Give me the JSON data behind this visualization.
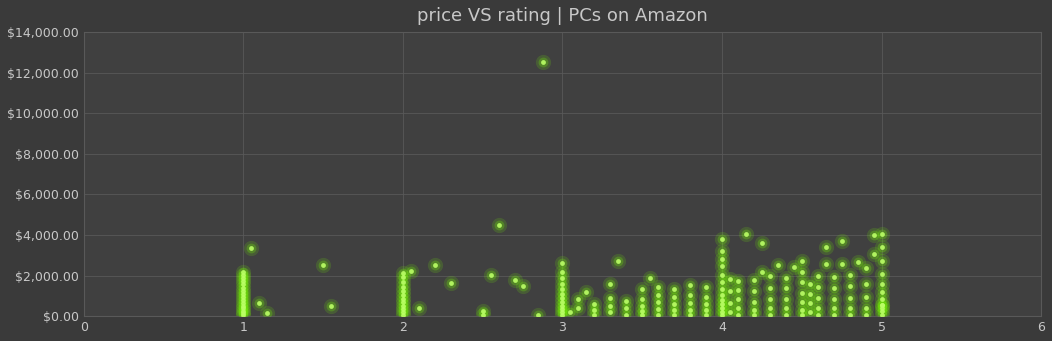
{
  "title": "price VS rating | PCs on Amazon",
  "bg_color": "#3a3a3a",
  "plot_bg_color": "#404040",
  "text_color": "#c8c8c8",
  "grid_color": "#595959",
  "dot_color": "#77ff00",
  "dot_glow_color": "#bbff66",
  "xlim": [
    0,
    6
  ],
  "ylim": [
    0,
    14000
  ],
  "xticks": [
    0,
    1,
    2,
    3,
    4,
    5,
    6
  ],
  "yticks": [
    0,
    2000,
    4000,
    6000,
    8000,
    10000,
    12000,
    14000
  ],
  "scatter_data": [
    [
      1.0,
      50
    ],
    [
      1.0,
      150
    ],
    [
      1.0,
      250
    ],
    [
      1.0,
      380
    ],
    [
      1.0,
      500
    ],
    [
      1.0,
      650
    ],
    [
      1.0,
      800
    ],
    [
      1.0,
      950
    ],
    [
      1.0,
      1100
    ],
    [
      1.0,
      1250
    ],
    [
      1.0,
      1400
    ],
    [
      1.0,
      1600
    ],
    [
      1.0,
      1750
    ],
    [
      1.0,
      1900
    ],
    [
      1.0,
      2050
    ],
    [
      1.0,
      2200
    ],
    [
      1.05,
      3350
    ],
    [
      1.1,
      650
    ],
    [
      1.15,
      180
    ],
    [
      1.5,
      2500
    ],
    [
      1.55,
      500
    ],
    [
      2.0,
      80
    ],
    [
      2.0,
      200
    ],
    [
      2.0,
      350
    ],
    [
      2.0,
      500
    ],
    [
      2.0,
      680
    ],
    [
      2.0,
      850
    ],
    [
      2.0,
      1050
    ],
    [
      2.0,
      1250
    ],
    [
      2.0,
      1450
    ],
    [
      2.0,
      1700
    ],
    [
      2.0,
      1950
    ],
    [
      2.0,
      2150
    ],
    [
      2.05,
      2250
    ],
    [
      2.1,
      380
    ],
    [
      2.2,
      2500
    ],
    [
      2.3,
      1650
    ],
    [
      2.5,
      80
    ],
    [
      2.5,
      280
    ],
    [
      2.55,
      2050
    ],
    [
      2.6,
      4500
    ],
    [
      2.7,
      1800
    ],
    [
      2.75,
      1500
    ],
    [
      2.85,
      80
    ],
    [
      2.88,
      12500
    ],
    [
      3.0,
      80
    ],
    [
      3.0,
      200
    ],
    [
      3.0,
      350
    ],
    [
      3.0,
      520
    ],
    [
      3.0,
      700
    ],
    [
      3.0,
      900
    ],
    [
      3.0,
      1100
    ],
    [
      3.0,
      1350
    ],
    [
      3.0,
      1600
    ],
    [
      3.0,
      1900
    ],
    [
      3.0,
      2200
    ],
    [
      3.0,
      2600
    ],
    [
      3.05,
      200
    ],
    [
      3.1,
      400
    ],
    [
      3.1,
      850
    ],
    [
      3.15,
      1200
    ],
    [
      3.2,
      80
    ],
    [
      3.2,
      300
    ],
    [
      3.2,
      600
    ],
    [
      3.3,
      200
    ],
    [
      3.3,
      520
    ],
    [
      3.3,
      900
    ],
    [
      3.3,
      1600
    ],
    [
      3.35,
      2700
    ],
    [
      3.4,
      80
    ],
    [
      3.4,
      400
    ],
    [
      3.4,
      750
    ],
    [
      3.5,
      80
    ],
    [
      3.5,
      250
    ],
    [
      3.5,
      500
    ],
    [
      3.5,
      850
    ],
    [
      3.5,
      1350
    ],
    [
      3.55,
      1900
    ],
    [
      3.6,
      80
    ],
    [
      3.6,
      350
    ],
    [
      3.6,
      700
    ],
    [
      3.6,
      1050
    ],
    [
      3.6,
      1450
    ],
    [
      3.7,
      80
    ],
    [
      3.7,
      300
    ],
    [
      3.7,
      600
    ],
    [
      3.7,
      950
    ],
    [
      3.7,
      1350
    ],
    [
      3.8,
      80
    ],
    [
      3.8,
      300
    ],
    [
      3.8,
      650
    ],
    [
      3.8,
      1050
    ],
    [
      3.8,
      1550
    ],
    [
      3.9,
      80
    ],
    [
      3.9,
      300
    ],
    [
      3.9,
      600
    ],
    [
      3.9,
      950
    ],
    [
      3.9,
      1450
    ],
    [
      4.0,
      80
    ],
    [
      4.0,
      200
    ],
    [
      4.0,
      400
    ],
    [
      4.0,
      600
    ],
    [
      4.0,
      820
    ],
    [
      4.0,
      1050
    ],
    [
      4.0,
      1350
    ],
    [
      4.0,
      1700
    ],
    [
      4.0,
      2050
    ],
    [
      4.0,
      2450
    ],
    [
      4.0,
      2800
    ],
    [
      4.0,
      3200
    ],
    [
      4.0,
      3800
    ],
    [
      4.05,
      200
    ],
    [
      4.05,
      650
    ],
    [
      4.05,
      1250
    ],
    [
      4.05,
      1850
    ],
    [
      4.1,
      80
    ],
    [
      4.1,
      400
    ],
    [
      4.1,
      850
    ],
    [
      4.1,
      1300
    ],
    [
      4.1,
      1750
    ],
    [
      4.15,
      4050
    ],
    [
      4.2,
      80
    ],
    [
      4.2,
      320
    ],
    [
      4.2,
      720
    ],
    [
      4.2,
      1250
    ],
    [
      4.2,
      1800
    ],
    [
      4.25,
      2200
    ],
    [
      4.25,
      3600
    ],
    [
      4.3,
      80
    ],
    [
      4.3,
      400
    ],
    [
      4.3,
      850
    ],
    [
      4.3,
      1400
    ],
    [
      4.3,
      2000
    ],
    [
      4.35,
      2500
    ],
    [
      4.4,
      80
    ],
    [
      4.4,
      400
    ],
    [
      4.4,
      850
    ],
    [
      4.4,
      1400
    ],
    [
      4.4,
      1900
    ],
    [
      4.45,
      2400
    ],
    [
      4.5,
      80
    ],
    [
      4.5,
      300
    ],
    [
      4.5,
      720
    ],
    [
      4.5,
      1150
    ],
    [
      4.5,
      1700
    ],
    [
      4.5,
      2200
    ],
    [
      4.5,
      2700
    ],
    [
      4.55,
      200
    ],
    [
      4.55,
      650
    ],
    [
      4.55,
      1100
    ],
    [
      4.55,
      1600
    ],
    [
      4.6,
      80
    ],
    [
      4.6,
      380
    ],
    [
      4.6,
      900
    ],
    [
      4.6,
      1450
    ],
    [
      4.6,
      2000
    ],
    [
      4.65,
      2550
    ],
    [
      4.65,
      3400
    ],
    [
      4.7,
      80
    ],
    [
      4.7,
      400
    ],
    [
      4.7,
      850
    ],
    [
      4.7,
      1400
    ],
    [
      4.7,
      1950
    ],
    [
      4.75,
      2550
    ],
    [
      4.75,
      3700
    ],
    [
      4.8,
      80
    ],
    [
      4.8,
      400
    ],
    [
      4.8,
      900
    ],
    [
      4.8,
      1500
    ],
    [
      4.8,
      2050
    ],
    [
      4.85,
      2650
    ],
    [
      4.9,
      80
    ],
    [
      4.9,
      400
    ],
    [
      4.9,
      950
    ],
    [
      4.9,
      1600
    ],
    [
      4.9,
      2350
    ],
    [
      4.95,
      3050
    ],
    [
      4.95,
      4000
    ],
    [
      5.0,
      80
    ],
    [
      5.0,
      280
    ],
    [
      5.0,
      550
    ],
    [
      5.0,
      850
    ],
    [
      5.0,
      1200
    ],
    [
      5.0,
      1600
    ],
    [
      5.0,
      2100
    ],
    [
      5.0,
      2700
    ],
    [
      5.0,
      3400
    ],
    [
      5.0,
      4050
    ],
    [
      5.0,
      550
    ],
    [
      5.0,
      380
    ]
  ]
}
